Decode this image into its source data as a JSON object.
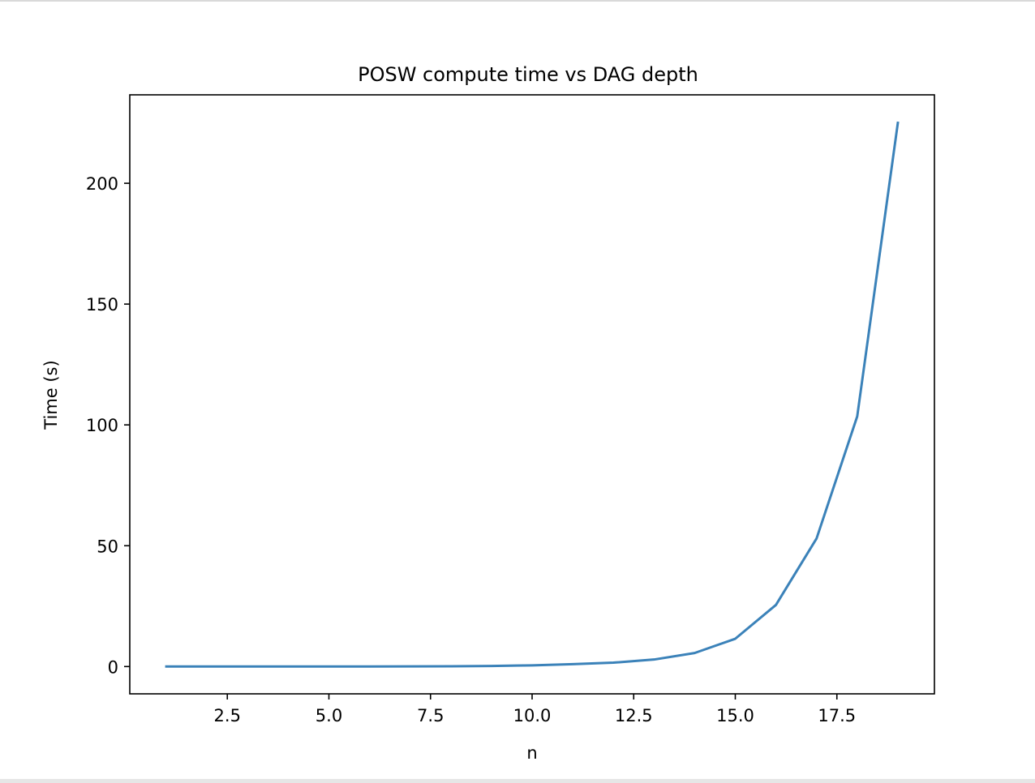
{
  "chart_data": {
    "type": "line",
    "title": "POSW compute time vs DAG depth",
    "xlabel": "n",
    "ylabel": "Time (s)",
    "xlim": [
      0.1,
      19.9
    ],
    "ylim": [
      -11.3,
      236.6
    ],
    "xticks": [
      2.5,
      5.0,
      7.5,
      10.0,
      12.5,
      15.0,
      17.5
    ],
    "xtick_labels": [
      "2.5",
      "5.0",
      "7.5",
      "10.0",
      "12.5",
      "15.0",
      "17.5"
    ],
    "yticks": [
      0,
      50,
      100,
      150,
      200
    ],
    "ytick_labels": [
      "0",
      "50",
      "100",
      "150",
      "200"
    ],
    "grid": false,
    "line_color": "#3b82b9",
    "series": [
      {
        "x": [
          1,
          2,
          3,
          4,
          5,
          6,
          7,
          8,
          9,
          10,
          11,
          12,
          13,
          14,
          15,
          16,
          17,
          18,
          19
        ],
        "values": [
          0.0,
          0.0,
          0.0,
          0.01,
          0.02,
          0.03,
          0.06,
          0.12,
          0.24,
          0.5,
          1.0,
          1.6,
          2.9,
          5.6,
          11.5,
          25.5,
          53.0,
          103.5,
          225.0
        ]
      }
    ]
  }
}
